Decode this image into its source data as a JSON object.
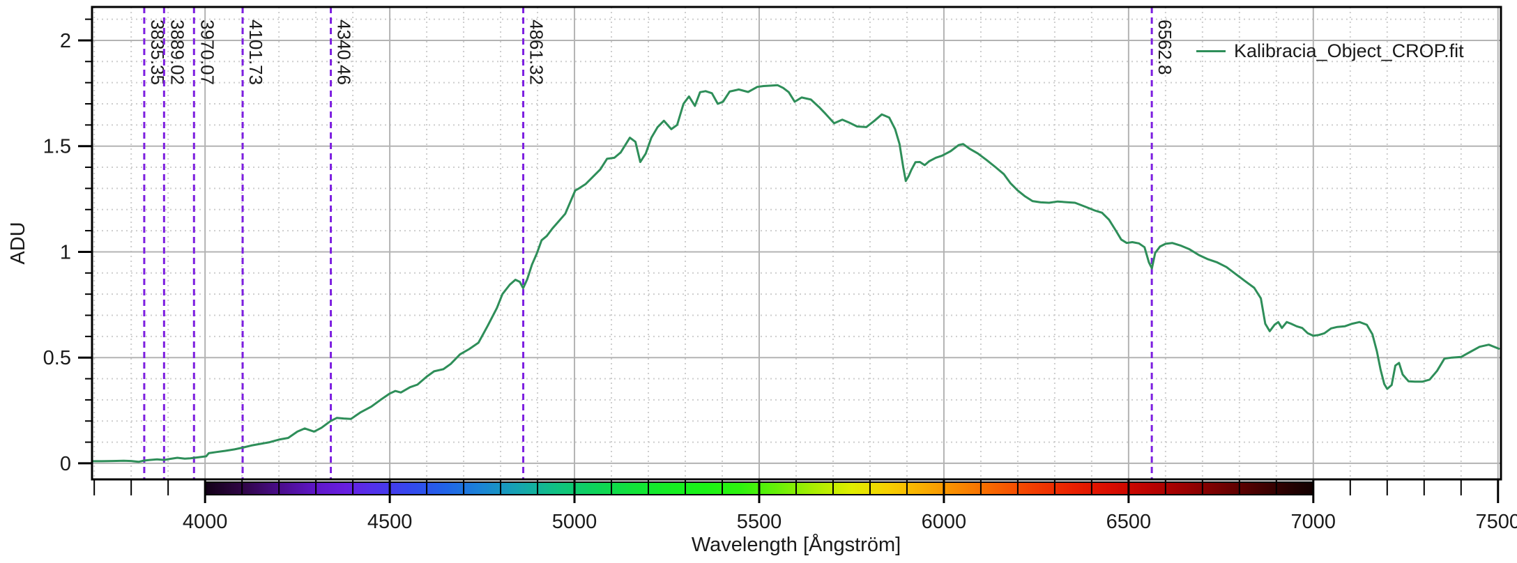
{
  "chart_data": {
    "type": "line",
    "title": "",
    "xlabel": "Wavelength [Ångström]",
    "ylabel": "ADU",
    "xlim": [
      3694,
      7508
    ],
    "ylim": [
      -0.076,
      2.158
    ],
    "grid": true,
    "x_tick_values": [
      4000,
      4500,
      5000,
      5500,
      6000,
      6500,
      7000,
      7500
    ],
    "x_tick_labels": [
      "4000",
      "4500",
      "5000",
      "5500",
      "6000",
      "6500",
      "7000",
      "7500"
    ],
    "y_tick_values": [
      0,
      0.5,
      1,
      1.5,
      2
    ],
    "y_tick_labels": [
      "0",
      "0.5",
      "1",
      "1.5",
      "2"
    ],
    "minor_x_step": 100,
    "minor_y_step": 0.1,
    "legend": {
      "label": "Kalibracia_Object_CROP.fit",
      "color": "#2e8e59",
      "position": "top-right"
    },
    "spectral_lines": [
      {
        "value": 3835.35,
        "label": "3835.35"
      },
      {
        "value": 3889.02,
        "label": "3889.02"
      },
      {
        "value": 3970.07,
        "label": "3970.07"
      },
      {
        "value": 4101.73,
        "label": "4101.73"
      },
      {
        "value": 4340.46,
        "label": "4340.46"
      },
      {
        "value": 4861.32,
        "label": "4861.32"
      },
      {
        "value": 6562.8,
        "label": "6562.8"
      }
    ],
    "series": [
      {
        "name": "Kalibracia_Object_CROP.fit",
        "color": "#2e8e59",
        "x": [
          3694,
          3720,
          3750,
          3780,
          3800,
          3820,
          3835,
          3850,
          3870,
          3889,
          3905,
          3925,
          3945,
          3960,
          3975,
          3990,
          4003,
          4010,
          4030,
          4055,
          4080,
          4101,
          4125,
          4150,
          4175,
          4200,
          4225,
          4250,
          4270,
          4295,
          4315,
          4340,
          4357,
          4375,
          4395,
          4420,
          4450,
          4475,
          4500,
          4515,
          4530,
          4555,
          4575,
          4600,
          4620,
          4645,
          4665,
          4690,
          4715,
          4740,
          4765,
          4790,
          4805,
          4825,
          4840,
          4852,
          4861,
          4872,
          4885,
          4898,
          4911,
          4925,
          4940,
          4955,
          4975,
          5002,
          5012,
          5030,
          5050,
          5070,
          5088,
          5108,
          5125,
          5150,
          5165,
          5178,
          5193,
          5208,
          5225,
          5242,
          5262,
          5278,
          5295,
          5310,
          5326,
          5340,
          5355,
          5372,
          5388,
          5402,
          5420,
          5445,
          5470,
          5495,
          5512,
          5532,
          5550,
          5565,
          5580,
          5596,
          5615,
          5640,
          5662,
          5680,
          5703,
          5725,
          5745,
          5765,
          5790,
          5812,
          5832,
          5852,
          5868,
          5880,
          5890,
          5897,
          5905,
          5912,
          5923,
          5935,
          5948,
          5960,
          5978,
          5995,
          6018,
          6040,
          6052,
          6070,
          6092,
          6115,
          6140,
          6162,
          6180,
          6200,
          6220,
          6240,
          6262,
          6285,
          6308,
          6330,
          6355,
          6385,
          6408,
          6428,
          6447,
          6465,
          6480,
          6495,
          6510,
          6528,
          6543,
          6555,
          6563,
          6572,
          6585,
          6600,
          6618,
          6640,
          6665,
          6690,
          6715,
          6740,
          6765,
          6790,
          6815,
          6840,
          6858,
          6870,
          6882,
          6895,
          6905,
          6915,
          6928,
          6940,
          6955,
          6970,
          6985,
          7000,
          7015,
          7030,
          7048,
          7065,
          7085,
          7105,
          7125,
          7145,
          7160,
          7172,
          7182,
          7192,
          7200,
          7212,
          7222,
          7232,
          7242,
          7258,
          7275,
          7295,
          7315,
          7335,
          7355,
          7375,
          7400,
          7425,
          7450,
          7475,
          7502
        ],
        "y": [
          0.01,
          0.01,
          0.011,
          0.012,
          0.011,
          0.007,
          0.013,
          0.016,
          0.019,
          0.016,
          0.021,
          0.026,
          0.022,
          0.024,
          0.027,
          0.03,
          0.033,
          0.048,
          0.053,
          0.059,
          0.066,
          0.074,
          0.084,
          0.092,
          0.1,
          0.112,
          0.12,
          0.15,
          0.165,
          0.15,
          0.168,
          0.2,
          0.215,
          0.212,
          0.21,
          0.24,
          0.268,
          0.3,
          0.33,
          0.342,
          0.335,
          0.36,
          0.372,
          0.41,
          0.435,
          0.445,
          0.47,
          0.515,
          0.54,
          0.57,
          0.65,
          0.735,
          0.8,
          0.845,
          0.868,
          0.858,
          0.828,
          0.87,
          0.94,
          0.992,
          1.055,
          1.075,
          1.11,
          1.14,
          1.18,
          1.29,
          1.3,
          1.32,
          1.355,
          1.39,
          1.44,
          1.445,
          1.47,
          1.54,
          1.52,
          1.425,
          1.465,
          1.54,
          1.59,
          1.62,
          1.58,
          1.6,
          1.7,
          1.735,
          1.69,
          1.755,
          1.76,
          1.75,
          1.7,
          1.71,
          1.758,
          1.768,
          1.756,
          1.78,
          1.784,
          1.786,
          1.788,
          1.775,
          1.755,
          1.71,
          1.73,
          1.72,
          1.685,
          1.652,
          1.608,
          1.625,
          1.61,
          1.593,
          1.59,
          1.62,
          1.65,
          1.635,
          1.58,
          1.51,
          1.4,
          1.335,
          1.36,
          1.388,
          1.424,
          1.425,
          1.41,
          1.428,
          1.445,
          1.455,
          1.476,
          1.505,
          1.51,
          1.487,
          1.465,
          1.435,
          1.4,
          1.368,
          1.325,
          1.29,
          1.262,
          1.24,
          1.234,
          1.232,
          1.238,
          1.235,
          1.232,
          1.212,
          1.196,
          1.185,
          1.152,
          1.102,
          1.058,
          1.042,
          1.046,
          1.04,
          1.022,
          0.95,
          0.922,
          0.995,
          1.025,
          1.038,
          1.042,
          1.03,
          1.012,
          0.985,
          0.965,
          0.95,
          0.928,
          0.895,
          0.862,
          0.83,
          0.78,
          0.66,
          0.625,
          0.655,
          0.668,
          0.64,
          0.668,
          0.66,
          0.648,
          0.64,
          0.615,
          0.603,
          0.607,
          0.615,
          0.638,
          0.645,
          0.648,
          0.66,
          0.668,
          0.655,
          0.61,
          0.53,
          0.443,
          0.375,
          0.352,
          0.37,
          0.462,
          0.475,
          0.42,
          0.388,
          0.386,
          0.386,
          0.396,
          0.437,
          0.495,
          0.5,
          0.503,
          0.527,
          0.551,
          0.561,
          0.542
        ]
      }
    ],
    "colorbar": {
      "start": 4000,
      "end": 7000,
      "stops": [
        [
          4000,
          "#120016"
        ],
        [
          4100,
          "#2f0545"
        ],
        [
          4200,
          "#4a0d8a"
        ],
        [
          4300,
          "#5f17c8"
        ],
        [
          4380,
          "#681fe0"
        ],
        [
          4450,
          "#5430ea"
        ],
        [
          4550,
          "#3647ee"
        ],
        [
          4650,
          "#2163e8"
        ],
        [
          4750,
          "#1b85d5"
        ],
        [
          4850,
          "#16a4b0"
        ],
        [
          4950,
          "#10c183"
        ],
        [
          5050,
          "#0ed25c"
        ],
        [
          5150,
          "#11e13c"
        ],
        [
          5250,
          "#15ec24"
        ],
        [
          5350,
          "#1af216"
        ],
        [
          5450,
          "#2ef20e"
        ],
        [
          5550,
          "#69ef08"
        ],
        [
          5650,
          "#abee02"
        ],
        [
          5750,
          "#e0ee00"
        ],
        [
          5850,
          "#f6cf00"
        ],
        [
          5950,
          "#f9ab00"
        ],
        [
          6050,
          "#f98500"
        ],
        [
          6150,
          "#f75f00"
        ],
        [
          6250,
          "#f23b00"
        ],
        [
          6350,
          "#e92000"
        ],
        [
          6450,
          "#d90d00"
        ],
        [
          6550,
          "#bd0300"
        ],
        [
          6650,
          "#9c0000"
        ],
        [
          6750,
          "#730000"
        ],
        [
          6850,
          "#470000"
        ],
        [
          6950,
          "#200000"
        ],
        [
          7000,
          "#120000"
        ]
      ]
    },
    "colors": {
      "line": "#2e8e59",
      "spectral_line": "#7d1fe0",
      "grid_major": "#b3b3b3",
      "grid_minor": "#cdcdcd",
      "axis": "#000000",
      "text": "#1a1a1a"
    }
  }
}
